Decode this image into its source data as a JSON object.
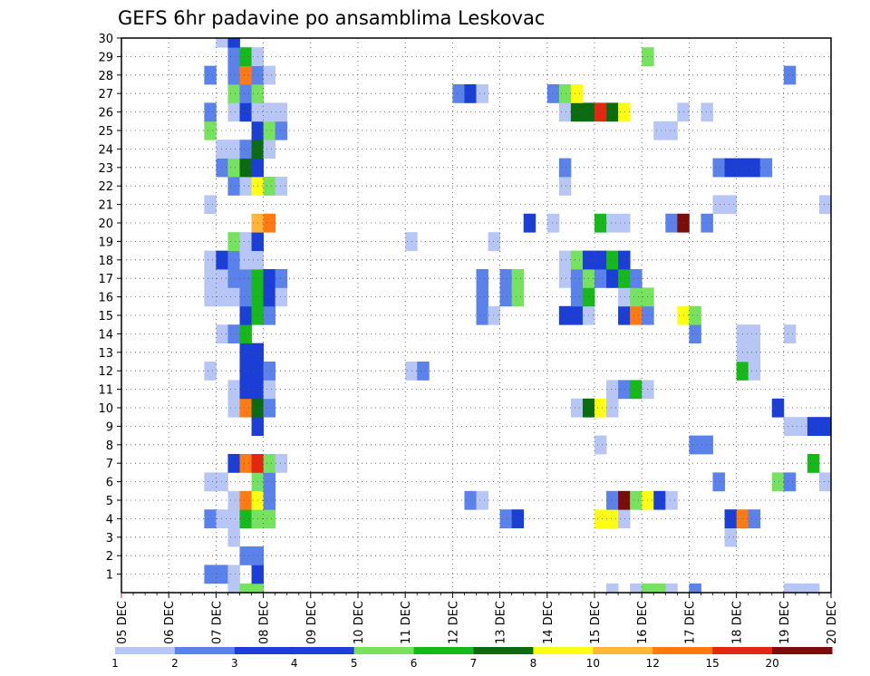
{
  "chart_data": {
    "type": "heatmap",
    "title": "GEFS 6hr padavine po ansamblima Leskovac",
    "xlabel": "",
    "ylabel": "",
    "x_ticks": [
      "05 DEC",
      "06 DEC",
      "07 DEC",
      "08 DEC",
      "09 DEC",
      "10 DEC",
      "11 DEC",
      "12 DEC",
      "13 DEC",
      "14 DEC",
      "15 DEC",
      "16 DEC",
      "17 DEC",
      "18 DEC",
      "19 DEC",
      "20 DEC"
    ],
    "y_ticks": [
      "1",
      "2",
      "3",
      "4",
      "5",
      "6",
      "7",
      "8",
      "9",
      "10",
      "11",
      "12",
      "13",
      "14",
      "15",
      "16",
      "17",
      "18",
      "19",
      "20",
      "21",
      "22",
      "23",
      "24",
      "25",
      "26",
      "27",
      "28",
      "29",
      "30"
    ],
    "x_range": [
      "05 DEC 00Z",
      "20 DEC 00Z"
    ],
    "y_range": [
      0,
      30
    ],
    "grid": true,
    "colorbar": {
      "labels": [
        "1",
        "2",
        "3",
        "4",
        "5",
        "6",
        "7",
        "8",
        "10",
        "12",
        "15",
        "20"
      ],
      "colors": [
        "#b7c6f5",
        "#5a82ea",
        "#1a3ed6",
        "#1f40d8",
        "#76e25f",
        "#16b81a",
        "#0a6b10",
        "#ffff14",
        "#ffb43a",
        "#ff7a13",
        "#e4270f",
        "#7a0c0a"
      ]
    },
    "palette": [
      "#b7c6f5",
      "#5a82ea",
      "#1a3ed6",
      "#76e25f",
      "#16b81a",
      "#0a6b10",
      "#ffff14",
      "#ffb43a",
      "#ff7a13",
      "#e4270f",
      "#7a0c0a"
    ],
    "cells_note_units": "x in days from 05 DEC 00Z at 6-hour steps (0.25 day); y is ensemble member row; v is palette category 1-11",
    "cells": [
      {
        "x": 2.25,
        "y": 0,
        "v": 1
      },
      {
        "x": 2.5,
        "y": 0,
        "v": 4
      },
      {
        "x": 2.75,
        "y": 0,
        "v": 4
      },
      {
        "x": 10.25,
        "y": 0,
        "v": 1
      },
      {
        "x": 10.75,
        "y": 0,
        "v": 1
      },
      {
        "x": 11.0,
        "y": 0,
        "v": 4
      },
      {
        "x": 11.25,
        "y": 0,
        "v": 4
      },
      {
        "x": 11.5,
        "y": 0,
        "v": 1
      },
      {
        "x": 12.0,
        "y": 0,
        "v": 2
      },
      {
        "x": 14.0,
        "y": 0,
        "v": 1
      },
      {
        "x": 14.25,
        "y": 0,
        "v": 1
      },
      {
        "x": 14.5,
        "y": 0,
        "v": 1
      },
      {
        "x": 1.75,
        "y": 1,
        "v": 2
      },
      {
        "x": 2.0,
        "y": 1,
        "v": 2
      },
      {
        "x": 2.25,
        "y": 1,
        "v": 1
      },
      {
        "x": 2.75,
        "y": 1,
        "v": 3
      },
      {
        "x": 2.5,
        "y": 2,
        "v": 2
      },
      {
        "x": 2.75,
        "y": 2,
        "v": 2
      },
      {
        "x": 2.25,
        "y": 3,
        "v": 1
      },
      {
        "x": 12.75,
        "y": 3,
        "v": 1
      },
      {
        "x": 1.75,
        "y": 4,
        "v": 2
      },
      {
        "x": 2.0,
        "y": 4,
        "v": 1
      },
      {
        "x": 2.25,
        "y": 4,
        "v": 1
      },
      {
        "x": 2.5,
        "y": 4,
        "v": 5
      },
      {
        "x": 2.75,
        "y": 4,
        "v": 4
      },
      {
        "x": 3.0,
        "y": 4,
        "v": 4
      },
      {
        "x": 8.0,
        "y": 4,
        "v": 2
      },
      {
        "x": 8.25,
        "y": 4,
        "v": 3
      },
      {
        "x": 10.0,
        "y": 4,
        "v": 7
      },
      {
        "x": 10.25,
        "y": 4,
        "v": 7
      },
      {
        "x": 10.5,
        "y": 4,
        "v": 1
      },
      {
        "x": 12.75,
        "y": 4,
        "v": 3
      },
      {
        "x": 13.0,
        "y": 4,
        "v": 9
      },
      {
        "x": 13.25,
        "y": 4,
        "v": 2
      },
      {
        "x": 2.25,
        "y": 5,
        "v": 1
      },
      {
        "x": 2.5,
        "y": 5,
        "v": 9
      },
      {
        "x": 2.75,
        "y": 5,
        "v": 7
      },
      {
        "x": 3.0,
        "y": 5,
        "v": 2
      },
      {
        "x": 7.25,
        "y": 5,
        "v": 2
      },
      {
        "x": 7.5,
        "y": 5,
        "v": 1
      },
      {
        "x": 10.25,
        "y": 5,
        "v": 2
      },
      {
        "x": 10.5,
        "y": 5,
        "v": 11
      },
      {
        "x": 10.75,
        "y": 5,
        "v": 4
      },
      {
        "x": 11.0,
        "y": 5,
        "v": 7
      },
      {
        "x": 11.25,
        "y": 5,
        "v": 3
      },
      {
        "x": 11.5,
        "y": 5,
        "v": 1
      },
      {
        "x": 1.75,
        "y": 6,
        "v": 1
      },
      {
        "x": 2.0,
        "y": 6,
        "v": 1
      },
      {
        "x": 2.75,
        "y": 6,
        "v": 4
      },
      {
        "x": 3.0,
        "y": 6,
        "v": 2
      },
      {
        "x": 12.5,
        "y": 6,
        "v": 2
      },
      {
        "x": 13.75,
        "y": 6,
        "v": 4
      },
      {
        "x": 14.0,
        "y": 6,
        "v": 2
      },
      {
        "x": 14.75,
        "y": 6,
        "v": 1
      },
      {
        "x": 2.25,
        "y": 7,
        "v": 3
      },
      {
        "x": 2.5,
        "y": 7,
        "v": 9
      },
      {
        "x": 2.75,
        "y": 7,
        "v": 10
      },
      {
        "x": 3.0,
        "y": 7,
        "v": 4
      },
      {
        "x": 3.25,
        "y": 7,
        "v": 1
      },
      {
        "x": 14.5,
        "y": 7,
        "v": 5
      },
      {
        "x": 10.0,
        "y": 8,
        "v": 1
      },
      {
        "x": 12.0,
        "y": 8,
        "v": 2
      },
      {
        "x": 12.25,
        "y": 8,
        "v": 2
      },
      {
        "x": 2.75,
        "y": 9,
        "v": 3
      },
      {
        "x": 14.0,
        "y": 9,
        "v": 1
      },
      {
        "x": 14.25,
        "y": 9,
        "v": 1
      },
      {
        "x": 14.5,
        "y": 9,
        "v": 3
      },
      {
        "x": 14.75,
        "y": 9,
        "v": 3
      },
      {
        "x": 2.25,
        "y": 10,
        "v": 1
      },
      {
        "x": 2.5,
        "y": 10,
        "v": 9
      },
      {
        "x": 2.75,
        "y": 10,
        "v": 6
      },
      {
        "x": 3.0,
        "y": 10,
        "v": 2
      },
      {
        "x": 9.5,
        "y": 10,
        "v": 1
      },
      {
        "x": 9.75,
        "y": 10,
        "v": 6
      },
      {
        "x": 10.0,
        "y": 10,
        "v": 7
      },
      {
        "x": 10.25,
        "y": 10,
        "v": 1
      },
      {
        "x": 13.75,
        "y": 10,
        "v": 3
      },
      {
        "x": 2.25,
        "y": 11,
        "v": 1
      },
      {
        "x": 2.5,
        "y": 11,
        "v": 3
      },
      {
        "x": 2.75,
        "y": 11,
        "v": 3
      },
      {
        "x": 3.0,
        "y": 11,
        "v": 1
      },
      {
        "x": 10.25,
        "y": 11,
        "v": 1
      },
      {
        "x": 10.5,
        "y": 11,
        "v": 2
      },
      {
        "x": 10.75,
        "y": 11,
        "v": 5
      },
      {
        "x": 11.0,
        "y": 11,
        "v": 1
      },
      {
        "x": 1.75,
        "y": 12,
        "v": 1
      },
      {
        "x": 2.5,
        "y": 12,
        "v": 3
      },
      {
        "x": 2.75,
        "y": 12,
        "v": 3
      },
      {
        "x": 3.0,
        "y": 12,
        "v": 2
      },
      {
        "x": 6.0,
        "y": 12,
        "v": 1
      },
      {
        "x": 6.25,
        "y": 12,
        "v": 2
      },
      {
        "x": 13.0,
        "y": 12,
        "v": 5
      },
      {
        "x": 13.25,
        "y": 12,
        "v": 1
      },
      {
        "x": 2.5,
        "y": 13,
        "v": 3
      },
      {
        "x": 2.75,
        "y": 13,
        "v": 3
      },
      {
        "x": 13.0,
        "y": 13,
        "v": 1
      },
      {
        "x": 13.25,
        "y": 13,
        "v": 1
      },
      {
        "x": 2.0,
        "y": 14,
        "v": 1
      },
      {
        "x": 2.25,
        "y": 14,
        "v": 2
      },
      {
        "x": 2.5,
        "y": 14,
        "v": 5
      },
      {
        "x": 12.0,
        "y": 14,
        "v": 2
      },
      {
        "x": 13.0,
        "y": 14,
        "v": 1
      },
      {
        "x": 13.25,
        "y": 14,
        "v": 1
      },
      {
        "x": 14.0,
        "y": 14,
        "v": 1
      },
      {
        "x": 2.5,
        "y": 15,
        "v": 3
      },
      {
        "x": 2.75,
        "y": 15,
        "v": 5
      },
      {
        "x": 3.0,
        "y": 15,
        "v": 2
      },
      {
        "x": 7.5,
        "y": 15,
        "v": 2
      },
      {
        "x": 7.75,
        "y": 15,
        "v": 1
      },
      {
        "x": 9.25,
        "y": 15,
        "v": 3
      },
      {
        "x": 9.5,
        "y": 15,
        "v": 3
      },
      {
        "x": 9.75,
        "y": 15,
        "v": 1
      },
      {
        "x": 10.5,
        "y": 15,
        "v": 3
      },
      {
        "x": 10.75,
        "y": 15,
        "v": 9
      },
      {
        "x": 11.0,
        "y": 15,
        "v": 2
      },
      {
        "x": 11.75,
        "y": 15,
        "v": 7
      },
      {
        "x": 12.0,
        "y": 15,
        "v": 4
      },
      {
        "x": 1.75,
        "y": 16,
        "v": 1
      },
      {
        "x": 2.0,
        "y": 16,
        "v": 1
      },
      {
        "x": 2.25,
        "y": 16,
        "v": 1
      },
      {
        "x": 2.5,
        "y": 16,
        "v": 2
      },
      {
        "x": 2.75,
        "y": 16,
        "v": 5
      },
      {
        "x": 3.0,
        "y": 16,
        "v": 3
      },
      {
        "x": 3.25,
        "y": 16,
        "v": 1
      },
      {
        "x": 7.5,
        "y": 16,
        "v": 2
      },
      {
        "x": 8.0,
        "y": 16,
        "v": 2
      },
      {
        "x": 8.25,
        "y": 16,
        "v": 4
      },
      {
        "x": 9.5,
        "y": 16,
        "v": 2
      },
      {
        "x": 9.75,
        "y": 16,
        "v": 5
      },
      {
        "x": 10.5,
        "y": 16,
        "v": 1
      },
      {
        "x": 10.75,
        "y": 16,
        "v": 4
      },
      {
        "x": 11.0,
        "y": 16,
        "v": 4
      },
      {
        "x": 1.75,
        "y": 17,
        "v": 1
      },
      {
        "x": 2.0,
        "y": 17,
        "v": 1
      },
      {
        "x": 2.25,
        "y": 17,
        "v": 2
      },
      {
        "x": 2.5,
        "y": 17,
        "v": 2
      },
      {
        "x": 2.75,
        "y": 17,
        "v": 5
      },
      {
        "x": 3.0,
        "y": 17,
        "v": 3
      },
      {
        "x": 3.25,
        "y": 17,
        "v": 2
      },
      {
        "x": 7.5,
        "y": 17,
        "v": 2
      },
      {
        "x": 8.0,
        "y": 17,
        "v": 2
      },
      {
        "x": 8.25,
        "y": 17,
        "v": 4
      },
      {
        "x": 9.25,
        "y": 17,
        "v": 1
      },
      {
        "x": 9.5,
        "y": 17,
        "v": 2
      },
      {
        "x": 9.75,
        "y": 17,
        "v": 4
      },
      {
        "x": 10.0,
        "y": 17,
        "v": 2
      },
      {
        "x": 10.25,
        "y": 17,
        "v": 3
      },
      {
        "x": 10.5,
        "y": 17,
        "v": 5
      },
      {
        "x": 10.75,
        "y": 17,
        "v": 2
      },
      {
        "x": 1.75,
        "y": 18,
        "v": 1
      },
      {
        "x": 2.0,
        "y": 18,
        "v": 3
      },
      {
        "x": 2.25,
        "y": 18,
        "v": 2
      },
      {
        "x": 2.5,
        "y": 18,
        "v": 1
      },
      {
        "x": 2.75,
        "y": 18,
        "v": 1
      },
      {
        "x": 9.25,
        "y": 18,
        "v": 1
      },
      {
        "x": 9.5,
        "y": 18,
        "v": 4
      },
      {
        "x": 9.75,
        "y": 18,
        "v": 3
      },
      {
        "x": 10.0,
        "y": 18,
        "v": 3
      },
      {
        "x": 10.25,
        "y": 18,
        "v": 5
      },
      {
        "x": 10.5,
        "y": 18,
        "v": 3
      },
      {
        "x": 2.25,
        "y": 19,
        "v": 4
      },
      {
        "x": 2.5,
        "y": 19,
        "v": 1
      },
      {
        "x": 2.75,
        "y": 19,
        "v": 3
      },
      {
        "x": 6.0,
        "y": 19,
        "v": 1
      },
      {
        "x": 7.75,
        "y": 19,
        "v": 1
      },
      {
        "x": 2.75,
        "y": 20,
        "v": 8
      },
      {
        "x": 3.0,
        "y": 20,
        "v": 9
      },
      {
        "x": 8.5,
        "y": 20,
        "v": 3
      },
      {
        "x": 9.0,
        "y": 20,
        "v": 1
      },
      {
        "x": 10.0,
        "y": 20,
        "v": 5
      },
      {
        "x": 10.25,
        "y": 20,
        "v": 1
      },
      {
        "x": 10.5,
        "y": 20,
        "v": 1
      },
      {
        "x": 11.5,
        "y": 20,
        "v": 2
      },
      {
        "x": 11.75,
        "y": 20,
        "v": 11
      },
      {
        "x": 12.25,
        "y": 20,
        "v": 2
      },
      {
        "x": 1.75,
        "y": 21,
        "v": 1
      },
      {
        "x": 12.5,
        "y": 21,
        "v": 1
      },
      {
        "x": 12.75,
        "y": 21,
        "v": 1
      },
      {
        "x": 14.75,
        "y": 21,
        "v": 1
      },
      {
        "x": 2.25,
        "y": 22,
        "v": 2
      },
      {
        "x": 2.5,
        "y": 22,
        "v": 1
      },
      {
        "x": 2.75,
        "y": 22,
        "v": 7
      },
      {
        "x": 3.0,
        "y": 22,
        "v": 4
      },
      {
        "x": 3.25,
        "y": 22,
        "v": 1
      },
      {
        "x": 9.25,
        "y": 22,
        "v": 1
      },
      {
        "x": 2.0,
        "y": 23,
        "v": 2
      },
      {
        "x": 2.25,
        "y": 23,
        "v": 4
      },
      {
        "x": 2.5,
        "y": 23,
        "v": 6
      },
      {
        "x": 2.75,
        "y": 23,
        "v": 3
      },
      {
        "x": 9.25,
        "y": 23,
        "v": 2
      },
      {
        "x": 12.5,
        "y": 23,
        "v": 2
      },
      {
        "x": 12.75,
        "y": 23,
        "v": 3
      },
      {
        "x": 13.0,
        "y": 23,
        "v": 3
      },
      {
        "x": 13.25,
        "y": 23,
        "v": 3
      },
      {
        "x": 13.5,
        "y": 23,
        "v": 2
      },
      {
        "x": 2.0,
        "y": 24,
        "v": 1
      },
      {
        "x": 2.25,
        "y": 24,
        "v": 1
      },
      {
        "x": 2.5,
        "y": 24,
        "v": 2
      },
      {
        "x": 2.75,
        "y": 24,
        "v": 6
      },
      {
        "x": 3.0,
        "y": 24,
        "v": 1
      },
      {
        "x": 1.75,
        "y": 25,
        "v": 4
      },
      {
        "x": 2.75,
        "y": 25,
        "v": 3
      },
      {
        "x": 3.0,
        "y": 25,
        "v": 4
      },
      {
        "x": 3.25,
        "y": 25,
        "v": 2
      },
      {
        "x": 11.25,
        "y": 25,
        "v": 1
      },
      {
        "x": 11.5,
        "y": 25,
        "v": 1
      },
      {
        "x": 1.75,
        "y": 26,
        "v": 2
      },
      {
        "x": 2.25,
        "y": 26,
        "v": 1
      },
      {
        "x": 2.5,
        "y": 26,
        "v": 3
      },
      {
        "x": 2.75,
        "y": 26,
        "v": 1
      },
      {
        "x": 3.0,
        "y": 26,
        "v": 1
      },
      {
        "x": 3.25,
        "y": 26,
        "v": 1
      },
      {
        "x": 9.25,
        "y": 26,
        "v": 1
      },
      {
        "x": 9.5,
        "y": 26,
        "v": 6
      },
      {
        "x": 9.75,
        "y": 26,
        "v": 6
      },
      {
        "x": 10.0,
        "y": 26,
        "v": 10
      },
      {
        "x": 10.25,
        "y": 26,
        "v": 6
      },
      {
        "x": 10.5,
        "y": 26,
        "v": 7
      },
      {
        "x": 11.75,
        "y": 26,
        "v": 1
      },
      {
        "x": 12.25,
        "y": 26,
        "v": 1
      },
      {
        "x": 2.25,
        "y": 27,
        "v": 4
      },
      {
        "x": 2.5,
        "y": 27,
        "v": 2
      },
      {
        "x": 2.75,
        "y": 27,
        "v": 4
      },
      {
        "x": 7.0,
        "y": 27,
        "v": 2
      },
      {
        "x": 7.25,
        "y": 27,
        "v": 3
      },
      {
        "x": 7.5,
        "y": 27,
        "v": 1
      },
      {
        "x": 9.0,
        "y": 27,
        "v": 2
      },
      {
        "x": 9.25,
        "y": 27,
        "v": 4
      },
      {
        "x": 9.5,
        "y": 27,
        "v": 7
      },
      {
        "x": 1.75,
        "y": 28,
        "v": 2
      },
      {
        "x": 2.25,
        "y": 28,
        "v": 2
      },
      {
        "x": 2.5,
        "y": 28,
        "v": 9
      },
      {
        "x": 2.75,
        "y": 28,
        "v": 2
      },
      {
        "x": 3.0,
        "y": 28,
        "v": 1
      },
      {
        "x": 14.0,
        "y": 28,
        "v": 2
      },
      {
        "x": 2.25,
        "y": 29,
        "v": 2
      },
      {
        "x": 2.5,
        "y": 29,
        "v": 5
      },
      {
        "x": 2.75,
        "y": 29,
        "v": 1
      },
      {
        "x": 11.0,
        "y": 29,
        "v": 4
      },
      {
        "x": 2.0,
        "y": 30,
        "v": 1
      },
      {
        "x": 2.25,
        "y": 30,
        "v": 3
      }
    ]
  }
}
